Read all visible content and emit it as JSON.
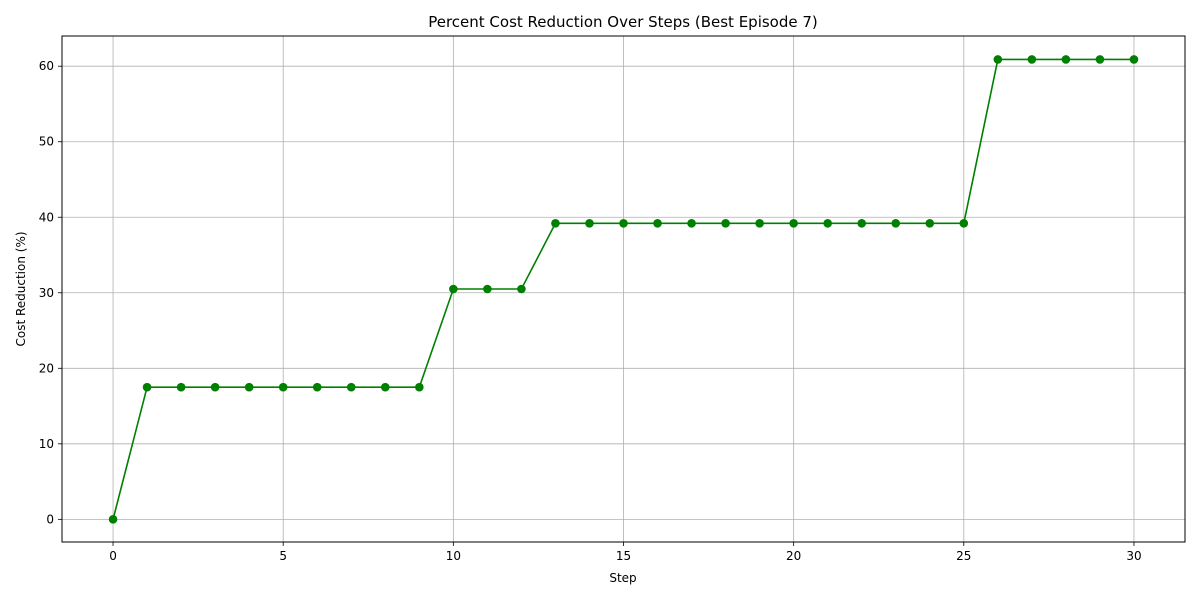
{
  "chart_data": {
    "type": "line",
    "title": "Percent Cost Reduction Over Steps (Best Episode 7)",
    "xlabel": "Step",
    "ylabel": "Cost Reduction (%)",
    "xlim": [
      -1.5,
      31.5
    ],
    "ylim": [
      -3.0,
      64.0
    ],
    "xticks": [
      0,
      5,
      10,
      15,
      20,
      25,
      30
    ],
    "yticks": [
      0,
      10,
      20,
      30,
      40,
      50,
      60
    ],
    "grid": true,
    "legend": "none",
    "line_color": "#008000",
    "marker": "circle",
    "series": [
      {
        "x": [
          0,
          1,
          2,
          3,
          4,
          5,
          6,
          7,
          8,
          9,
          10,
          11,
          12,
          13,
          14,
          15,
          16,
          17,
          18,
          19,
          20,
          21,
          22,
          23,
          24,
          25,
          26,
          27,
          28,
          29,
          30
        ],
        "values": [
          0.0,
          17.5,
          17.5,
          17.5,
          17.5,
          17.5,
          17.5,
          17.5,
          17.5,
          17.5,
          30.5,
          30.5,
          30.5,
          39.2,
          39.2,
          39.2,
          39.2,
          39.2,
          39.2,
          39.2,
          39.2,
          39.2,
          39.2,
          39.2,
          39.2,
          39.2,
          60.9,
          60.9,
          60.9,
          60.9,
          60.9
        ]
      }
    ]
  }
}
